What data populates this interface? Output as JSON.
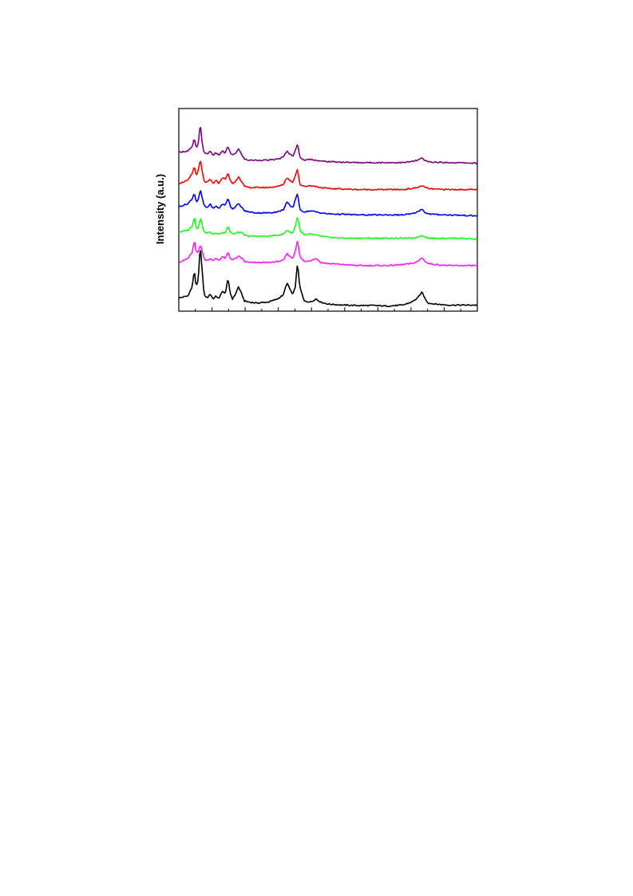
{
  "chart_data": {
    "type": "line",
    "title": "",
    "xlabel": "",
    "ylabel": "Intensity (a.u.)",
    "xlim": [
      0,
      1
    ],
    "ylim": [
      0,
      1
    ],
    "grid": false,
    "legend": "none",
    "series": [
      {
        "color": "#000000",
        "baseline": 0.03,
        "x": [
          0.0,
          0.03,
          0.045,
          0.052,
          0.058,
          0.065,
          0.072,
          0.078,
          0.085,
          0.095,
          0.105,
          0.115,
          0.125,
          0.135,
          0.145,
          0.155,
          0.165,
          0.172,
          0.18,
          0.19,
          0.2,
          0.212,
          0.22,
          0.235,
          0.26,
          0.3,
          0.33,
          0.35,
          0.362,
          0.372,
          0.382,
          0.39,
          0.398,
          0.405,
          0.42,
          0.44,
          0.46,
          0.475,
          0.5,
          0.55,
          0.6,
          0.65,
          0.7,
          0.75,
          0.78,
          0.8,
          0.815,
          0.822,
          0.835,
          0.86,
          0.9,
          0.95,
          1.0
        ],
        "y": [
          0.065,
          0.075,
          0.12,
          0.205,
          0.12,
          0.15,
          0.33,
          0.2,
          0.08,
          0.065,
          0.085,
          0.06,
          0.075,
          0.06,
          0.1,
          0.085,
          0.16,
          0.09,
          0.06,
          0.085,
          0.12,
          0.08,
          0.05,
          0.045,
          0.04,
          0.045,
          0.06,
          0.08,
          0.14,
          0.11,
          0.08,
          0.12,
          0.24,
          0.12,
          0.05,
          0.045,
          0.06,
          0.045,
          0.035,
          0.03,
          0.028,
          0.028,
          0.025,
          0.03,
          0.045,
          0.065,
          0.095,
          0.07,
          0.04,
          0.035,
          0.03,
          0.03,
          0.03
        ]
      },
      {
        "color": "#ff1aff",
        "baseline": 0.22,
        "x": [
          0.0,
          0.03,
          0.045,
          0.052,
          0.058,
          0.065,
          0.072,
          0.078,
          0.085,
          0.095,
          0.105,
          0.115,
          0.125,
          0.135,
          0.145,
          0.155,
          0.165,
          0.172,
          0.18,
          0.19,
          0.2,
          0.212,
          0.22,
          0.235,
          0.26,
          0.3,
          0.33,
          0.35,
          0.362,
          0.372,
          0.382,
          0.39,
          0.398,
          0.405,
          0.42,
          0.44,
          0.46,
          0.475,
          0.5,
          0.55,
          0.6,
          0.65,
          0.7,
          0.75,
          0.78,
          0.8,
          0.815,
          0.822,
          0.835,
          0.86,
          0.9,
          0.95,
          1.0
        ],
        "y": [
          0.24,
          0.26,
          0.29,
          0.35,
          0.29,
          0.29,
          0.33,
          0.3,
          0.255,
          0.25,
          0.26,
          0.25,
          0.26,
          0.25,
          0.27,
          0.26,
          0.29,
          0.26,
          0.255,
          0.26,
          0.27,
          0.26,
          0.245,
          0.24,
          0.24,
          0.24,
          0.245,
          0.25,
          0.285,
          0.27,
          0.26,
          0.3,
          0.35,
          0.27,
          0.245,
          0.25,
          0.26,
          0.24,
          0.235,
          0.23,
          0.225,
          0.225,
          0.225,
          0.23,
          0.235,
          0.245,
          0.265,
          0.25,
          0.235,
          0.23,
          0.225,
          0.225,
          0.225
        ]
      },
      {
        "color": "#1aff1a",
        "baseline": 0.355,
        "x": [
          0.0,
          0.03,
          0.045,
          0.052,
          0.058,
          0.065,
          0.072,
          0.078,
          0.085,
          0.095,
          0.105,
          0.115,
          0.125,
          0.135,
          0.145,
          0.155,
          0.165,
          0.172,
          0.18,
          0.19,
          0.2,
          0.212,
          0.22,
          0.235,
          0.26,
          0.3,
          0.33,
          0.35,
          0.362,
          0.372,
          0.382,
          0.39,
          0.398,
          0.405,
          0.42,
          0.44,
          0.46,
          0.475,
          0.5,
          0.55,
          0.6,
          0.65,
          0.7,
          0.75,
          0.78,
          0.8,
          0.815,
          0.822,
          0.835,
          0.86,
          0.9,
          0.95,
          1.0
        ],
        "y": [
          0.39,
          0.4,
          0.42,
          0.47,
          0.41,
          0.41,
          0.46,
          0.43,
          0.39,
          0.385,
          0.39,
          0.38,
          0.385,
          0.38,
          0.39,
          0.385,
          0.42,
          0.39,
          0.38,
          0.385,
          0.39,
          0.385,
          0.375,
          0.37,
          0.37,
          0.37,
          0.375,
          0.38,
          0.4,
          0.39,
          0.385,
          0.42,
          0.47,
          0.4,
          0.375,
          0.38,
          0.375,
          0.37,
          0.365,
          0.36,
          0.36,
          0.36,
          0.36,
          0.36,
          0.36,
          0.365,
          0.375,
          0.368,
          0.36,
          0.36,
          0.36,
          0.36,
          0.355
        ]
      },
      {
        "color": "#0000ff",
        "baseline": 0.47,
        "x": [
          0.0,
          0.03,
          0.045,
          0.052,
          0.058,
          0.065,
          0.072,
          0.078,
          0.085,
          0.095,
          0.105,
          0.115,
          0.125,
          0.135,
          0.145,
          0.155,
          0.165,
          0.172,
          0.18,
          0.19,
          0.2,
          0.212,
          0.22,
          0.235,
          0.26,
          0.3,
          0.33,
          0.35,
          0.362,
          0.372,
          0.382,
          0.39,
          0.398,
          0.405,
          0.42,
          0.44,
          0.46,
          0.475,
          0.5,
          0.55,
          0.6,
          0.65,
          0.7,
          0.75,
          0.78,
          0.8,
          0.815,
          0.822,
          0.835,
          0.86,
          0.9,
          0.95,
          1.0
        ],
        "y": [
          0.515,
          0.53,
          0.555,
          0.585,
          0.54,
          0.545,
          0.6,
          0.56,
          0.52,
          0.51,
          0.53,
          0.505,
          0.52,
          0.505,
          0.53,
          0.52,
          0.56,
          0.52,
          0.505,
          0.515,
          0.53,
          0.51,
          0.495,
          0.49,
          0.485,
          0.485,
          0.49,
          0.5,
          0.54,
          0.52,
          0.51,
          0.55,
          0.585,
          0.5,
          0.49,
          0.495,
          0.49,
          0.485,
          0.48,
          0.478,
          0.475,
          0.475,
          0.475,
          0.475,
          0.48,
          0.49,
          0.505,
          0.49,
          0.48,
          0.477,
          0.475,
          0.473,
          0.47
        ]
      },
      {
        "color": "#ff0000",
        "baseline": 0.6,
        "x": [
          0.0,
          0.03,
          0.045,
          0.052,
          0.058,
          0.065,
          0.072,
          0.078,
          0.085,
          0.095,
          0.105,
          0.115,
          0.125,
          0.135,
          0.145,
          0.155,
          0.165,
          0.172,
          0.18,
          0.19,
          0.2,
          0.212,
          0.22,
          0.235,
          0.26,
          0.3,
          0.33,
          0.35,
          0.362,
          0.372,
          0.382,
          0.39,
          0.398,
          0.405,
          0.42,
          0.44,
          0.46,
          0.475,
          0.5,
          0.55,
          0.6,
          0.65,
          0.7,
          0.75,
          0.78,
          0.8,
          0.815,
          0.822,
          0.835,
          0.86,
          0.9,
          0.95,
          1.0
        ],
        "y": [
          0.63,
          0.645,
          0.68,
          0.715,
          0.67,
          0.69,
          0.75,
          0.69,
          0.64,
          0.635,
          0.65,
          0.63,
          0.645,
          0.63,
          0.66,
          0.65,
          0.68,
          0.645,
          0.63,
          0.64,
          0.665,
          0.635,
          0.615,
          0.61,
          0.61,
          0.61,
          0.615,
          0.625,
          0.66,
          0.645,
          0.635,
          0.67,
          0.705,
          0.625,
          0.615,
          0.62,
          0.615,
          0.61,
          0.605,
          0.603,
          0.6,
          0.6,
          0.6,
          0.6,
          0.605,
          0.61,
          0.62,
          0.612,
          0.605,
          0.602,
          0.6,
          0.6,
          0.6
        ]
      },
      {
        "color": "#800080",
        "baseline": 0.73,
        "x": [
          0.0,
          0.03,
          0.045,
          0.052,
          0.058,
          0.065,
          0.072,
          0.078,
          0.085,
          0.095,
          0.105,
          0.115,
          0.125,
          0.135,
          0.145,
          0.155,
          0.165,
          0.172,
          0.18,
          0.19,
          0.2,
          0.212,
          0.22,
          0.235,
          0.26,
          0.3,
          0.33,
          0.35,
          0.362,
          0.372,
          0.382,
          0.39,
          0.398,
          0.405,
          0.42,
          0.44,
          0.46,
          0.475,
          0.5,
          0.55,
          0.6,
          0.65,
          0.7,
          0.75,
          0.78,
          0.8,
          0.815,
          0.822,
          0.835,
          0.86,
          0.9,
          0.95,
          1.0
        ],
        "y": [
          0.785,
          0.79,
          0.81,
          0.855,
          0.805,
          0.82,
          0.93,
          0.83,
          0.78,
          0.775,
          0.79,
          0.77,
          0.78,
          0.77,
          0.79,
          0.78,
          0.815,
          0.78,
          0.77,
          0.78,
          0.8,
          0.77,
          0.75,
          0.745,
          0.745,
          0.745,
          0.75,
          0.76,
          0.79,
          0.775,
          0.765,
          0.795,
          0.825,
          0.76,
          0.745,
          0.75,
          0.745,
          0.74,
          0.738,
          0.735,
          0.733,
          0.733,
          0.733,
          0.733,
          0.738,
          0.745,
          0.755,
          0.745,
          0.737,
          0.735,
          0.733,
          0.732,
          0.73
        ]
      }
    ]
  }
}
